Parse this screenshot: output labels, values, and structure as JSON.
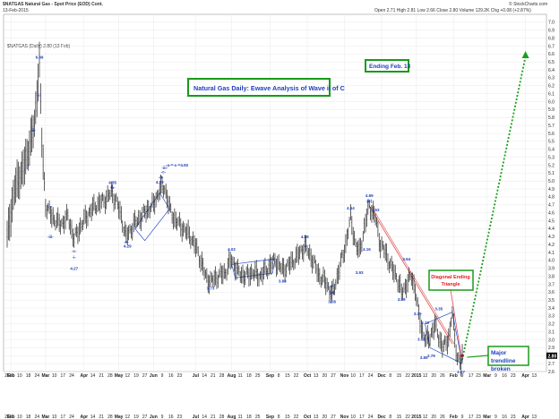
{
  "header": {
    "title": "$NATGAS Natural Gas - Spot Price (EOD) Cont.",
    "date": "13-Feb-2015",
    "quote": "Open 2.71  High 2.81  Low 2.66  Close 2.80  Volume 129.2K  Chg +0.08 (+2.87%)",
    "source": "© StockCharts.com",
    "legend": "$NATGAS (Daily) 2.80 (13 Feb)"
  },
  "annotations": {
    "title_box": "Natural Gas Daily: Ewave Analysis of Wave ii of C",
    "ending_box": "Ending Feb. 13",
    "triangle_label": "Diagonal Ending Triangle",
    "trendline_label": "Major trendline broken"
  },
  "colors": {
    "bars": "#222222",
    "wave_labels": "#1f3fbf",
    "box_text": "#1f3fbf",
    "box_border": "#1a9a1a",
    "triangle_text": "#e02020",
    "triangle_border": "#1a9a1a",
    "redline": "#e05050",
    "forecast": "#1aa01a",
    "grid": "#e8e8e8"
  },
  "chart_data": {
    "type": "ohlc",
    "title": "Natural Gas Daily: Ewave Analysis of Wave ii of C",
    "ylim": [
      2.6,
      7.1
    ],
    "y_ticks": [
      "2.6",
      "2.7",
      "2.8",
      "2.9",
      "3.0",
      "3.1",
      "3.2",
      "3.3",
      "3.4",
      "3.5",
      "3.6",
      "3.7",
      "3.8",
      "3.9",
      "4.0",
      "4.1",
      "4.2",
      "4.3",
      "4.4",
      "4.5",
      "4.6",
      "4.7",
      "4.8",
      "4.9",
      "5.0",
      "5.1",
      "5.2",
      "5.3",
      "5.4",
      "5.5",
      "5.6",
      "5.7",
      "5.8",
      "5.9",
      "6.0",
      "6.1",
      "6.2",
      "6.3",
      "6.4",
      "6.5",
      "6.6",
      "6.7",
      "6.8",
      "6.9",
      "7.0"
    ],
    "last_price": "2.80",
    "x_month_labels": [
      {
        "d": 3,
        "t": "Feb"
      },
      {
        "d": 31,
        "t": "Mar"
      },
      {
        "d": 62,
        "t": "Apr"
      },
      {
        "d": 90,
        "t": "May"
      },
      {
        "d": 118,
        "t": "Jun"
      },
      {
        "d": 152,
        "t": "Jul"
      },
      {
        "d": 181,
        "t": "Aug"
      },
      {
        "d": 212,
        "t": "Sep"
      },
      {
        "d": 242,
        "t": "Oct"
      },
      {
        "d": 272,
        "t": "Nov"
      },
      {
        "d": 302,
        "t": "Dec"
      },
      {
        "d": 330,
        "t": "2015"
      },
      {
        "d": 360,
        "t": "Feb"
      },
      {
        "d": 387,
        "t": "Mar"
      },
      {
        "d": 418,
        "t": "Apr"
      }
    ],
    "x_day_labels": [
      {
        "d": 0,
        "t": "21"
      },
      {
        "d": 3,
        "t": "27"
      },
      {
        "d": 10,
        "t": "10"
      },
      {
        "d": 17,
        "t": "18"
      },
      {
        "d": 24,
        "t": "24"
      },
      {
        "d": 38,
        "t": "10"
      },
      {
        "d": 45,
        "t": "17"
      },
      {
        "d": 52,
        "t": "24"
      },
      {
        "d": 69,
        "t": "14"
      },
      {
        "d": 76,
        "t": "21"
      },
      {
        "d": 83,
        "t": "28"
      },
      {
        "d": 97,
        "t": "12"
      },
      {
        "d": 104,
        "t": "19"
      },
      {
        "d": 111,
        "t": "27"
      },
      {
        "d": 125,
        "t": "9"
      },
      {
        "d": 132,
        "t": "16"
      },
      {
        "d": 139,
        "t": "23"
      },
      {
        "d": 159,
        "t": "14"
      },
      {
        "d": 166,
        "t": "21"
      },
      {
        "d": 173,
        "t": "28"
      },
      {
        "d": 188,
        "t": "11"
      },
      {
        "d": 195,
        "t": "18"
      },
      {
        "d": 202,
        "t": "25"
      },
      {
        "d": 219,
        "t": "8"
      },
      {
        "d": 226,
        "t": "15"
      },
      {
        "d": 233,
        "t": "22"
      },
      {
        "d": 249,
        "t": "13"
      },
      {
        "d": 256,
        "t": "20"
      },
      {
        "d": 263,
        "t": "27"
      },
      {
        "d": 279,
        "t": "10"
      },
      {
        "d": 286,
        "t": "17"
      },
      {
        "d": 293,
        "t": "24"
      },
      {
        "d": 309,
        "t": "8"
      },
      {
        "d": 316,
        "t": "15"
      },
      {
        "d": 323,
        "t": "22"
      },
      {
        "d": 337,
        "t": "12"
      },
      {
        "d": 344,
        "t": "20"
      },
      {
        "d": 351,
        "t": "26"
      },
      {
        "d": 367,
        "t": "9"
      },
      {
        "d": 374,
        "t": "17"
      },
      {
        "d": 380,
        "t": "23"
      },
      {
        "d": 394,
        "t": "9"
      },
      {
        "d": 401,
        "t": "16"
      },
      {
        "d": 408,
        "t": "23"
      },
      {
        "d": 425,
        "t": "13"
      }
    ],
    "last_bar_day": 367,
    "day_max": 432,
    "anchors": [
      [
        0,
        4.3
      ],
      [
        6,
        4.9
      ],
      [
        14,
        5.2
      ],
      [
        22,
        5.7
      ],
      [
        26,
        6.49
      ],
      [
        28,
        5.5
      ],
      [
        31,
        4.7
      ],
      [
        36,
        4.55
      ],
      [
        43,
        4.45
      ],
      [
        49,
        4.55
      ],
      [
        54,
        4.27
      ],
      [
        60,
        4.45
      ],
      [
        66,
        4.6
      ],
      [
        72,
        4.7
      ],
      [
        78,
        4.75
      ],
      [
        84,
        4.85
      ],
      [
        88,
        4.75
      ],
      [
        92,
        4.55
      ],
      [
        96,
        4.29
      ],
      [
        102,
        4.45
      ],
      [
        108,
        4.55
      ],
      [
        114,
        4.65
      ],
      [
        118,
        4.7
      ],
      [
        123,
        4.89
      ],
      [
        127,
        4.92
      ],
      [
        132,
        4.6
      ],
      [
        136,
        4.5
      ],
      [
        142,
        4.4
      ],
      [
        148,
        4.3
      ],
      [
        154,
        4.1
      ],
      [
        160,
        3.8
      ],
      [
        164,
        3.73
      ],
      [
        170,
        3.8
      ],
      [
        176,
        3.85
      ],
      [
        181,
        4.02
      ],
      [
        186,
        3.85
      ],
      [
        192,
        3.8
      ],
      [
        198,
        3.85
      ],
      [
        204,
        3.8
      ],
      [
        210,
        3.9
      ],
      [
        216,
        4.0
      ],
      [
        222,
        3.88
      ],
      [
        228,
        3.95
      ],
      [
        234,
        4.05
      ],
      [
        240,
        4.18
      ],
      [
        245,
        4.05
      ],
      [
        252,
        3.8
      ],
      [
        258,
        3.7
      ],
      [
        262,
        3.56
      ],
      [
        268,
        3.9
      ],
      [
        273,
        4.2
      ],
      [
        277,
        4.54
      ],
      [
        281,
        4.2
      ],
      [
        284,
        4.1
      ],
      [
        288,
        4.4
      ],
      [
        292,
        4.69
      ],
      [
        297,
        4.53
      ],
      [
        301,
        4.2
      ],
      [
        305,
        4.1
      ],
      [
        310,
        3.9
      ],
      [
        314,
        3.8
      ],
      [
        318,
        3.59
      ],
      [
        322,
        3.7
      ],
      [
        326,
        3.8
      ],
      [
        329,
        3.64
      ],
      [
        332,
        3.3
      ],
      [
        335,
        3.1
      ],
      [
        338,
        2.98
      ],
      [
        341,
        3.05
      ],
      [
        345,
        3.18
      ],
      [
        348,
        3.05
      ],
      [
        351,
        2.9
      ],
      [
        354,
        2.95
      ],
      [
        357,
        3.1
      ],
      [
        359,
        3.35
      ],
      [
        361,
        3.0
      ],
      [
        363,
        2.8
      ],
      [
        365,
        2.7
      ],
      [
        366,
        2.67
      ],
      [
        367,
        2.8
      ]
    ],
    "redline": [
      [
        292,
        4.69
      ],
      [
        359,
        2.95
      ]
    ],
    "triangle": [
      [
        337,
        3.2
      ],
      [
        359,
        3.35
      ],
      [
        367,
        2.7
      ],
      [
        341,
        2.9
      ]
    ],
    "channels": [
      [
        [
          103,
          4.4
        ],
        [
          123,
          4.85
        ],
        [
          131,
          4.65
        ],
        [
          111,
          4.25
        ]
      ],
      [
        [
          181,
          3.95
        ],
        [
          216,
          4.02
        ],
        [
          214,
          3.84
        ],
        [
          184,
          3.78
        ]
      ]
    ],
    "forecast": [
      [
        367,
        2.75
      ],
      [
        418,
        6.57
      ]
    ],
    "wave_labels": [
      {
        "d": 26,
        "v": 6.54,
        "t": "6.49"
      },
      {
        "d": 25,
        "v": 6.06,
        "t": "-iii-"
      },
      {
        "d": 21,
        "v": 5.62,
        "t": "-ii-"
      },
      {
        "d": 17,
        "v": 5.18,
        "t": "-i-"
      },
      {
        "d": 35,
        "v": 4.66,
        "t": "-iv-"
      },
      {
        "d": 35,
        "v": 4.28,
        "t": "-iii-"
      },
      {
        "d": 54,
        "v": 4.1,
        "t": "-c-"
      },
      {
        "d": 54,
        "v": 4.02,
        "t": "-i-"
      },
      {
        "d": 54,
        "v": 3.88,
        "t": "4.27"
      },
      {
        "d": 85,
        "v": 4.96,
        "t": "4.85"
      },
      {
        "d": 85,
        "v": 4.9,
        "t": "-b-"
      },
      {
        "d": 97,
        "v": 4.16,
        "t": "4.29"
      },
      {
        "d": 96,
        "v": 4.22,
        "t": "-a-"
      },
      {
        "d": 127,
        "v": 5.15,
        "t": "-iii-"
      },
      {
        "d": 124,
        "v": 5.03,
        "t": "-ii-"
      },
      {
        "d": 123,
        "v": 4.97,
        "t": "4.89"
      },
      {
        "d": 126,
        "v": 5.1,
        "t": "-c-"
      },
      {
        "d": 137,
        "v": 5.18,
        "t": "-a-=-c-=4.92"
      },
      {
        "d": 164,
        "v": 3.63,
        "t": "3.73"
      },
      {
        "d": 181,
        "v": 4.12,
        "t": "4.02"
      },
      {
        "d": 240,
        "v": 4.28,
        "t": "4.18"
      },
      {
        "d": 240,
        "v": 4.17,
        "t": "-iv-"
      },
      {
        "d": 222,
        "v": 3.72,
        "t": "3.88"
      },
      {
        "d": 262,
        "v": 3.46,
        "t": "3.56"
      },
      {
        "d": 262,
        "v": 3.58,
        "t": "(a)"
      },
      {
        "d": 262,
        "v": 3.66,
        "t": "-v-"
      },
      {
        "d": 277,
        "v": 4.64,
        "t": "4.54"
      },
      {
        "d": 292,
        "v": 4.8,
        "t": "4.69"
      },
      {
        "d": 292,
        "v": 4.73,
        "t": "(b)"
      },
      {
        "d": 297,
        "v": 4.62,
        "t": "4.53"
      },
      {
        "d": 290,
        "v": 4.12,
        "t": "4.16"
      },
      {
        "d": 284,
        "v": 3.83,
        "t": "3.93"
      },
      {
        "d": 318,
        "v": 3.49,
        "t": "3.59"
      },
      {
        "d": 322,
        "v": 4.0,
        "t": "3.94"
      },
      {
        "d": 331,
        "v": 3.31,
        "t": "3.29"
      },
      {
        "d": 337,
        "v": 3.2,
        "t": "3.18"
      },
      {
        "d": 334,
        "v": 2.99,
        "t": "3.06"
      },
      {
        "d": 336,
        "v": 2.76,
        "t": "3.85"
      },
      {
        "d": 342,
        "v": 2.78,
        "t": "2.79"
      },
      {
        "d": 348,
        "v": 3.37,
        "t": "3.35"
      },
      {
        "d": 366,
        "v": 2.58,
        "t": "2.67"
      }
    ]
  }
}
